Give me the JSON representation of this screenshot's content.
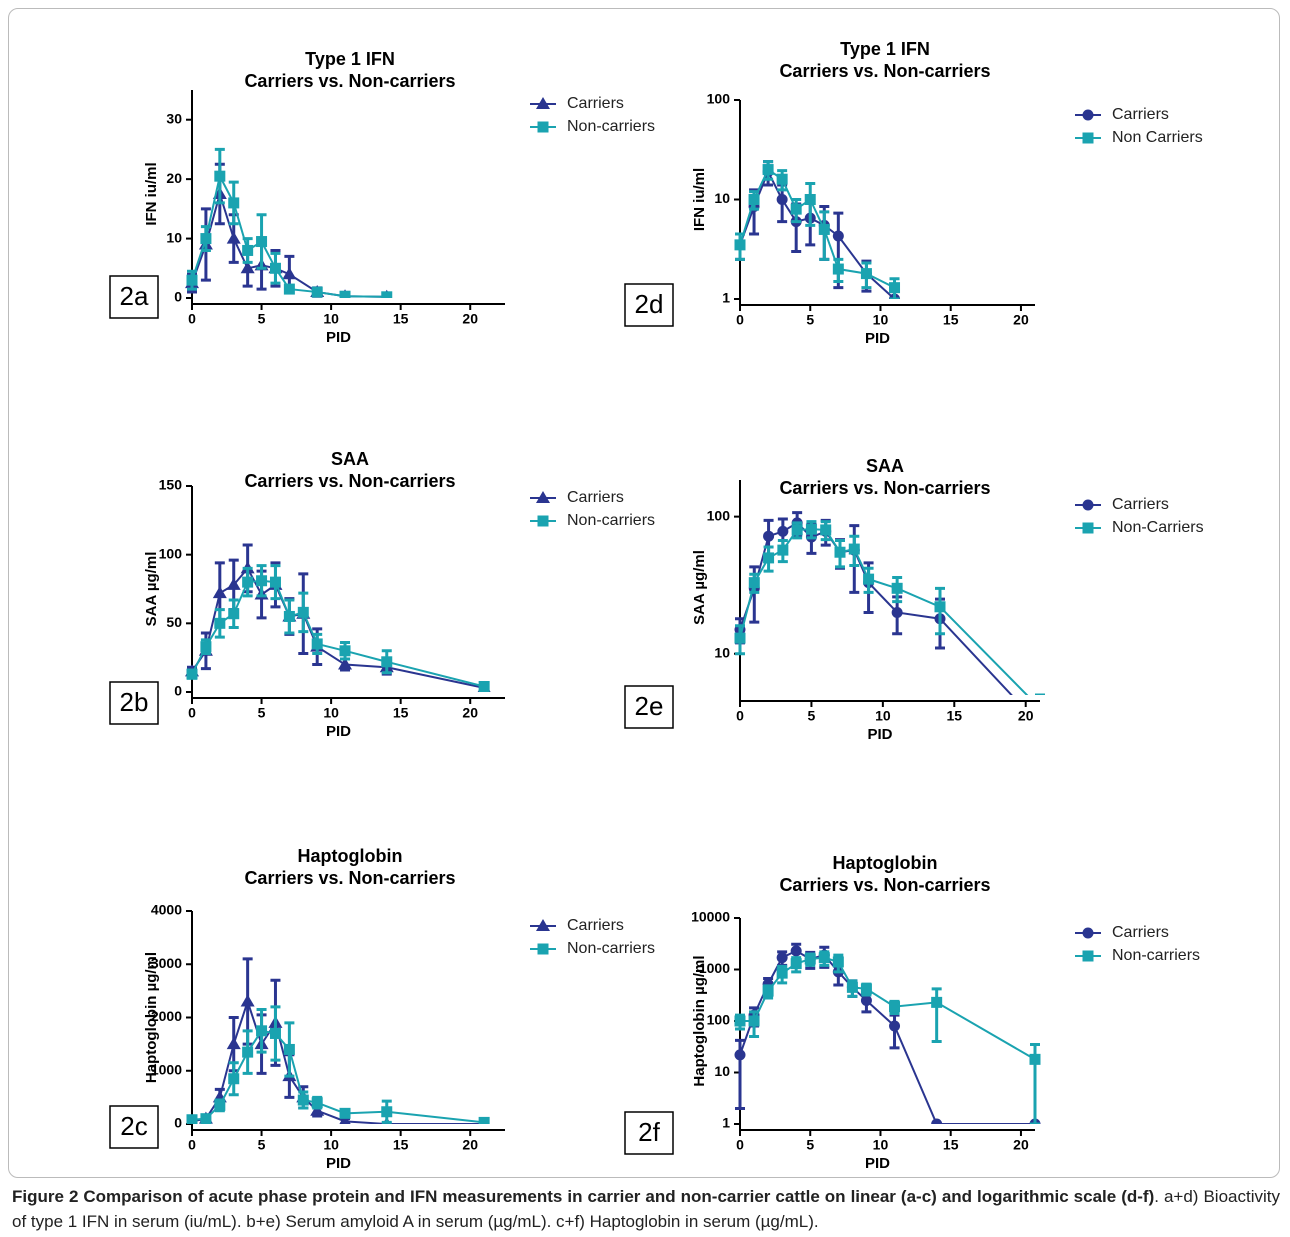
{
  "chart_data": [
    {
      "type": "line",
      "title": "Type 1 IFN",
      "subtitle": "Carriers vs. Non-carriers",
      "panel_label": "2a",
      "x_label": "PID",
      "y_label": "IFN iu/ml",
      "xlim": [
        0,
        22.5
      ],
      "xticks": [
        0,
        5,
        10,
        15,
        20
      ],
      "ylim": [
        0,
        35
      ],
      "yticks": [
        0,
        10,
        20,
        30
      ],
      "log_y": false,
      "series": [
        {
          "name": "Carriers",
          "color": "#2a3590",
          "marker": "triangle",
          "x": [
            0,
            1,
            2,
            3,
            4,
            5,
            6,
            7,
            9,
            11,
            14
          ],
          "values": [
            2.5,
            9,
            17.5,
            10,
            5,
            5.5,
            5,
            4,
            1,
            0.3,
            0.2
          ],
          "errors": [
            1.5,
            6,
            5,
            4,
            3,
            4,
            3,
            3,
            0.7,
            0.3,
            0.2
          ]
        },
        {
          "name": "Non-carriers",
          "color": "#1aa3b0",
          "marker": "square",
          "x": [
            0,
            1,
            2,
            3,
            4,
            5,
            6,
            7,
            9,
            11,
            14
          ],
          "values": [
            3,
            10,
            20.5,
            16,
            8,
            9.5,
            5,
            1.5,
            1,
            0.3,
            0.2
          ],
          "errors": [
            1.5,
            2,
            4.5,
            3.5,
            2,
            4.5,
            2.5,
            0.5,
            0.5,
            0.3,
            0.2
          ]
        }
      ]
    },
    {
      "type": "line",
      "title": "SAA",
      "subtitle": "Carriers vs. Non-carriers",
      "panel_label": "2b",
      "x_label": "PID",
      "y_label": "SAA µg/ml",
      "xlim": [
        0,
        22.5
      ],
      "xticks": [
        0,
        5,
        10,
        15,
        20
      ],
      "ylim": [
        0,
        150
      ],
      "yticks": [
        0,
        50,
        100,
        150
      ],
      "log_y": false,
      "series": [
        {
          "name": "Carriers",
          "color": "#2a3590",
          "marker": "triangle",
          "x": [
            0,
            1,
            2,
            3,
            4,
            5,
            6,
            7,
            8,
            9,
            11,
            14,
            21
          ],
          "values": [
            15,
            30,
            72,
            78,
            90,
            71,
            78,
            55,
            57,
            33,
            20,
            18,
            3
          ],
          "errors": [
            3,
            13,
            22,
            18,
            17,
            17,
            16,
            13,
            29,
            13,
            4,
            5,
            1
          ]
        },
        {
          "name": "Non-carriers",
          "color": "#1aa3b0",
          "marker": "square",
          "x": [
            0,
            1,
            2,
            3,
            4,
            5,
            6,
            7,
            8,
            9,
            11,
            14,
            21
          ],
          "values": [
            13,
            33,
            50,
            57,
            80,
            81,
            80,
            55,
            58,
            35,
            30,
            22,
            4
          ],
          "errors": [
            3,
            5,
            10,
            10,
            10,
            11,
            12,
            12,
            14,
            7,
            6,
            8,
            1
          ]
        }
      ]
    },
    {
      "type": "line",
      "title": "Haptoglobin",
      "subtitle": "Carriers vs. Non-carriers",
      "panel_label": "2c",
      "x_label": "PID",
      "y_label": "Haptoglobin µg/ml",
      "xlim": [
        0,
        22.5
      ],
      "xticks": [
        0,
        5,
        10,
        15,
        20
      ],
      "ylim": [
        0,
        4000
      ],
      "yticks": [
        0,
        1000,
        2000,
        3000,
        4000
      ],
      "log_y": false,
      "series": [
        {
          "name": "Carriers",
          "color": "#2a3590",
          "marker": "triangle",
          "x": [
            0,
            1,
            2,
            3,
            4,
            5,
            6,
            7,
            8,
            9,
            11,
            14,
            21
          ],
          "values": [
            50,
            100,
            500,
            1500,
            2300,
            1500,
            1900,
            900,
            500,
            250,
            50,
            0,
            0
          ],
          "errors": [
            20,
            50,
            150,
            500,
            800,
            550,
            800,
            400,
            200,
            100,
            50,
            0,
            0
          ]
        },
        {
          "name": "Non-carriers",
          "color": "#1aa3b0",
          "marker": "square",
          "x": [
            0,
            1,
            2,
            3,
            4,
            5,
            6,
            7,
            8,
            9,
            11,
            14,
            21
          ],
          "values": [
            80,
            100,
            350,
            850,
            1350,
            1750,
            1700,
            1400,
            450,
            400,
            200,
            230,
            30
          ],
          "errors": [
            30,
            50,
            100,
            300,
            400,
            400,
            500,
            500,
            150,
            100,
            50,
            200,
            30
          ]
        }
      ]
    },
    {
      "type": "line",
      "title": "Type 1 IFN",
      "subtitle": "Carriers vs. Non-carriers",
      "panel_label": "2d",
      "x_label": "PID",
      "y_label": "IFN iu/ml",
      "xlim": [
        0,
        21
      ],
      "xticks": [
        0,
        5,
        10,
        15,
        20
      ],
      "ylim": [
        1,
        100
      ],
      "yticks": [
        1,
        10,
        100
      ],
      "log_y": true,
      "series": [
        {
          "name": "Carriers",
          "color": "#2a3590",
          "marker": "circle",
          "x": [
            0,
            1,
            2,
            3,
            4,
            5,
            6,
            7,
            9,
            11
          ],
          "values": [
            3.5,
            8.5,
            19,
            10,
            6,
            6.5,
            5.5,
            4.3,
            1.8,
            1
          ],
          "errors": [
            1,
            4,
            5,
            4,
            3,
            3,
            3,
            3,
            0.6,
            0.3
          ]
        },
        {
          "name": "Non Carriers",
          "color": "#1aa3b0",
          "marker": "square",
          "x": [
            0,
            1,
            2,
            3,
            4,
            5,
            6,
            7,
            9,
            11
          ],
          "values": [
            3.5,
            10,
            20,
            16,
            8,
            10,
            5,
            2,
            1.8,
            1.3
          ],
          "errors": [
            1,
            2,
            4,
            3.5,
            2,
            4.5,
            2.5,
            0.5,
            0.5,
            0.3
          ]
        }
      ]
    },
    {
      "type": "line",
      "title": "SAA",
      "subtitle": "Carriers vs. Non-carriers",
      "panel_label": "2e",
      "x_label": "PID",
      "y_label": "SAA µg/ml",
      "xlim": [
        0,
        21
      ],
      "xticks": [
        0,
        5,
        10,
        15,
        20
      ],
      "ylim": [
        5,
        185
      ],
      "yticks": [
        10,
        100
      ],
      "log_y": true,
      "series": [
        {
          "name": "Carriers",
          "color": "#2a3590",
          "marker": "circle",
          "x": [
            0,
            1,
            2,
            3,
            4,
            5,
            6,
            7,
            8,
            9,
            11,
            14,
            21
          ],
          "values": [
            15,
            30,
            72,
            78,
            90,
            71,
            78,
            55,
            57,
            33,
            20,
            18,
            3
          ],
          "errors": [
            3,
            13,
            22,
            18,
            17,
            17,
            16,
            13,
            29,
            13,
            6,
            7,
            1
          ]
        },
        {
          "name": "Non-Carriers",
          "color": "#1aa3b0",
          "marker": "square",
          "x": [
            0,
            1,
            2,
            3,
            4,
            5,
            6,
            7,
            8,
            9,
            11,
            14,
            21
          ],
          "values": [
            13,
            33,
            50,
            57,
            80,
            81,
            80,
            55,
            58,
            35,
            30,
            22,
            4
          ],
          "errors": [
            3,
            5,
            10,
            10,
            10,
            11,
            12,
            12,
            14,
            7,
            6,
            8,
            1
          ]
        }
      ]
    },
    {
      "type": "line",
      "title": "Haptoglobin",
      "subtitle": "Carriers vs. Non-carriers",
      "panel_label": "2f",
      "x_label": "PID",
      "y_label": "Haptoglobin µg/ml",
      "xlim": [
        0,
        21
      ],
      "xticks": [
        0,
        5,
        10,
        15,
        20
      ],
      "ylim": [
        1,
        10000
      ],
      "yticks": [
        1,
        10,
        100,
        1000,
        10000
      ],
      "log_y": true,
      "series": [
        {
          "name": "Carriers",
          "color": "#2a3590",
          "marker": "circle",
          "x": [
            0,
            1,
            2,
            3,
            4,
            5,
            6,
            7,
            8,
            9,
            11,
            14,
            21
          ],
          "values": [
            22,
            130,
            520,
            1700,
            2300,
            1600,
            1900,
            900,
            450,
            250,
            80,
            1,
            1
          ],
          "errors": [
            20,
            50,
            150,
            500,
            800,
            550,
            800,
            400,
            150,
            100,
            50,
            0,
            0
          ]
        },
        {
          "name": "Non-carriers",
          "color": "#1aa3b0",
          "marker": "square",
          "x": [
            0,
            1,
            2,
            3,
            4,
            5,
            6,
            7,
            8,
            9,
            11,
            14,
            21
          ],
          "values": [
            100,
            100,
            380,
            850,
            1300,
            1600,
            1700,
            1400,
            450,
            420,
            190,
            230,
            18
          ],
          "errors": [
            30,
            50,
            100,
            300,
            400,
            400,
            500,
            500,
            150,
            100,
            50,
            190,
            17
          ]
        }
      ]
    }
  ],
  "caption": {
    "bold": "Figure 2 Comparison of acute phase protein and IFN measurements in carrier and non-carrier cattle on linear (a-c) and logarithmic scale (d-f)",
    "text": ". a+d) Bioactivity of type 1 IFN in serum (iu/mL). b+e) Serum amyloid A in serum (µg/mL). c+f) Haptoglobin in serum (µg/mL)."
  }
}
